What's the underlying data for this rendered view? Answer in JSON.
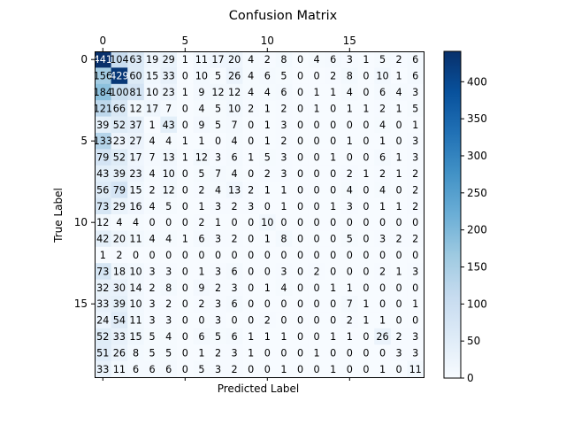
{
  "chart_data": {
    "type": "heatmap",
    "title": "Confusion Matrix",
    "xlabel": "Predicted Label",
    "ylabel": "True Label",
    "x_ticks": [
      0,
      5,
      10,
      15
    ],
    "y_ticks": [
      0,
      5,
      10,
      15
    ],
    "x_tick_position": "top",
    "colormap": "Blues",
    "color_range": [
      0,
      441
    ],
    "colorbar_ticks": [
      0,
      50,
      100,
      150,
      200,
      250,
      300,
      350,
      400
    ],
    "matrix": [
      [
        441,
        104,
        63,
        19,
        29,
        1,
        11,
        17,
        20,
        4,
        2,
        8,
        0,
        4,
        6,
        3,
        1,
        5,
        2,
        6
      ],
      [
        156,
        429,
        60,
        15,
        33,
        0,
        10,
        5,
        26,
        4,
        6,
        5,
        0,
        0,
        2,
        8,
        0,
        10,
        1,
        6
      ],
      [
        184,
        100,
        81,
        10,
        23,
        1,
        9,
        12,
        12,
        4,
        4,
        6,
        0,
        1,
        1,
        4,
        0,
        6,
        4,
        3
      ],
      [
        121,
        66,
        12,
        17,
        7,
        0,
        4,
        5,
        10,
        2,
        1,
        2,
        0,
        1,
        0,
        1,
        1,
        2,
        1,
        5
      ],
      [
        39,
        52,
        37,
        1,
        43,
        0,
        9,
        5,
        7,
        0,
        1,
        3,
        0,
        0,
        0,
        0,
        0,
        4,
        0,
        1
      ],
      [
        133,
        23,
        27,
        4,
        4,
        1,
        1,
        0,
        4,
        0,
        1,
        2,
        0,
        0,
        0,
        1,
        0,
        1,
        0,
        3
      ],
      [
        79,
        52,
        17,
        7,
        13,
        1,
        12,
        3,
        6,
        1,
        5,
        3,
        0,
        0,
        1,
        0,
        0,
        6,
        1,
        3
      ],
      [
        43,
        39,
        23,
        4,
        10,
        0,
        5,
        7,
        4,
        0,
        2,
        3,
        0,
        0,
        0,
        2,
        1,
        2,
        1,
        2
      ],
      [
        56,
        79,
        15,
        2,
        12,
        0,
        2,
        4,
        13,
        2,
        1,
        1,
        0,
        0,
        0,
        4,
        0,
        4,
        0,
        2
      ],
      [
        73,
        29,
        16,
        4,
        5,
        0,
        1,
        3,
        2,
        3,
        0,
        1,
        0,
        0,
        1,
        3,
        0,
        1,
        1,
        2
      ],
      [
        12,
        4,
        4,
        0,
        0,
        0,
        2,
        1,
        0,
        0,
        10,
        0,
        0,
        0,
        0,
        0,
        0,
        0,
        0,
        0
      ],
      [
        42,
        20,
        11,
        4,
        4,
        1,
        6,
        3,
        2,
        0,
        1,
        8,
        0,
        0,
        0,
        5,
        0,
        3,
        2,
        2
      ],
      [
        1,
        2,
        0,
        0,
        0,
        0,
        0,
        0,
        0,
        0,
        0,
        0,
        0,
        0,
        0,
        0,
        0,
        0,
        0,
        0
      ],
      [
        73,
        18,
        10,
        3,
        3,
        0,
        1,
        3,
        6,
        0,
        0,
        3,
        0,
        2,
        0,
        0,
        0,
        2,
        1,
        3
      ],
      [
        32,
        30,
        14,
        2,
        8,
        0,
        9,
        2,
        3,
        0,
        1,
        4,
        0,
        0,
        1,
        1,
        0,
        0,
        0,
        0
      ],
      [
        33,
        39,
        10,
        3,
        2,
        0,
        2,
        3,
        6,
        0,
        0,
        0,
        0,
        0,
        0,
        7,
        1,
        0,
        0,
        1
      ],
      [
        24,
        54,
        11,
        3,
        3,
        0,
        0,
        3,
        0,
        0,
        2,
        0,
        0,
        0,
        0,
        2,
        1,
        1,
        0,
        0
      ],
      [
        52,
        33,
        15,
        5,
        4,
        0,
        6,
        5,
        6,
        1,
        1,
        1,
        0,
        0,
        1,
        1,
        0,
        26,
        2,
        3
      ],
      [
        51,
        26,
        8,
        5,
        5,
        0,
        1,
        2,
        3,
        1,
        0,
        0,
        0,
        1,
        0,
        0,
        0,
        0,
        3,
        3
      ],
      [
        33,
        11,
        6,
        6,
        6,
        0,
        5,
        3,
        2,
        0,
        0,
        1,
        0,
        0,
        1,
        0,
        0,
        1,
        0,
        11
      ]
    ]
  }
}
